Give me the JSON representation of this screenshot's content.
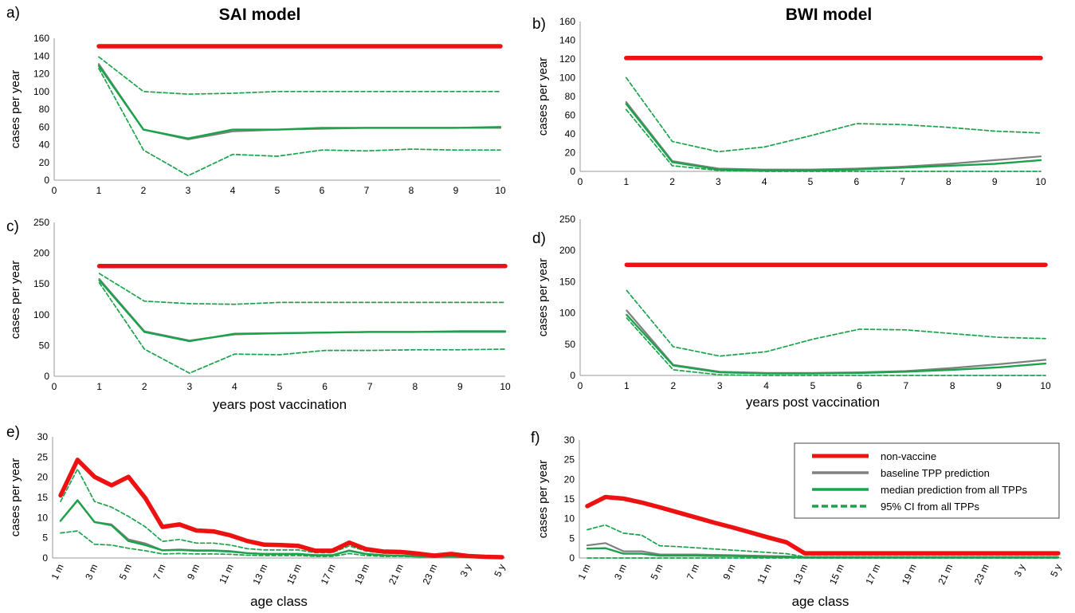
{
  "titles": {
    "left": "SAI model",
    "right": "BWI model"
  },
  "legend": {
    "items": [
      {
        "label": "non-vaccine",
        "color": "#ee1111",
        "dash": false,
        "style": "thick"
      },
      {
        "label": "baseline TPP prediction",
        "color": "#808080",
        "dash": false,
        "style": "mid"
      },
      {
        "label": "median prediction from all TPPs",
        "color": "#1aa34a",
        "dash": false,
        "style": "mid"
      },
      {
        "label": "95% CI from all TPPs",
        "color": "#1aa34a",
        "dash": true,
        "style": "mid"
      }
    ]
  },
  "colors": {
    "nonvaccine": "#ee1111",
    "baseline": "#808080",
    "median": "#1aa34a",
    "ci": "#1aa34a"
  },
  "chart_data": [
    {
      "panel": "a)",
      "type": "line",
      "title": "SAI model",
      "xlabel": "",
      "ylabel": "cases per year",
      "x": [
        1,
        2,
        3,
        4,
        5,
        6,
        7,
        8,
        9,
        10
      ],
      "xticks": [
        "0",
        "1",
        "2",
        "3",
        "4",
        "5",
        "6",
        "7",
        "8",
        "9",
        "10"
      ],
      "yticks": [
        "0",
        "20",
        "40",
        "60",
        "80",
        "100",
        "120",
        "140",
        "160"
      ],
      "xlim": [
        0,
        10
      ],
      "ylim": [
        0,
        160
      ],
      "series": [
        {
          "name": "non-vaccine",
          "role": "nonvaccine",
          "values": [
            151,
            151,
            151,
            151,
            151,
            151,
            151,
            151,
            151,
            151
          ]
        },
        {
          "name": "baseline TPP prediction",
          "role": "baseline",
          "values": [
            131,
            57,
            46,
            55,
            57,
            58,
            59,
            59,
            59,
            59
          ]
        },
        {
          "name": "median prediction from all TPPs",
          "role": "median",
          "values": [
            129,
            57,
            47,
            57,
            57,
            59,
            59,
            59,
            59,
            60
          ]
        },
        {
          "name": "95% CI from all TPPs",
          "role": "ci",
          "values": [
            139,
            100,
            97,
            98,
            100,
            100,
            100,
            100,
            100,
            100
          ]
        },
        {
          "name": "95% CI from all TPPs",
          "role": "ci",
          "values": [
            126,
            34,
            5,
            29,
            27,
            34,
            33,
            35,
            34,
            34
          ]
        }
      ]
    },
    {
      "panel": "b)",
      "type": "line",
      "title": "BWI model",
      "xlabel": "",
      "ylabel": "cases per year",
      "x": [
        1,
        2,
        3,
        4,
        5,
        6,
        7,
        8,
        9,
        10
      ],
      "xticks": [
        "0",
        "1",
        "2",
        "3",
        "4",
        "5",
        "6",
        "7",
        "8",
        "9",
        "10"
      ],
      "yticks": [
        "0",
        "20",
        "40",
        "60",
        "80",
        "100",
        "120",
        "140",
        "160"
      ],
      "xlim": [
        0,
        10
      ],
      "ylim": [
        0,
        160
      ],
      "series": [
        {
          "name": "non-vaccine",
          "role": "nonvaccine",
          "values": [
            121,
            121,
            121,
            121,
            121,
            121,
            121,
            121,
            121,
            121
          ]
        },
        {
          "name": "baseline TPP prediction",
          "role": "baseline",
          "values": [
            74,
            11,
            3,
            2,
            2,
            3,
            5,
            8,
            12,
            16
          ]
        },
        {
          "name": "median prediction from all TPPs",
          "role": "median",
          "values": [
            72,
            10,
            2,
            1,
            1,
            2,
            4,
            6,
            8,
            12
          ]
        },
        {
          "name": "95% CI from all TPPs",
          "role": "ci",
          "values": [
            100,
            32,
            21,
            26,
            38,
            51,
            50,
            47,
            43,
            41
          ]
        },
        {
          "name": "95% CI from all TPPs",
          "role": "ci",
          "values": [
            66,
            6,
            1,
            0,
            0,
            0,
            0,
            0,
            0,
            0
          ]
        }
      ]
    },
    {
      "panel": "c)",
      "type": "line",
      "xlabel": "years post vaccination",
      "ylabel": "cases per year",
      "x": [
        1,
        2,
        3,
        4,
        5,
        6,
        7,
        8,
        9,
        10
      ],
      "xticks": [
        "0",
        "1",
        "2",
        "3",
        "4",
        "5",
        "6",
        "7",
        "8",
        "9",
        "10"
      ],
      "yticks": [
        "0",
        "50",
        "100",
        "150",
        "200",
        "250"
      ],
      "xlim": [
        0,
        10
      ],
      "ylim": [
        0,
        250
      ],
      "series": [
        {
          "name": "non-vaccine",
          "role": "nonvaccine",
          "values": [
            179,
            179,
            179,
            179,
            179,
            179,
            179,
            179,
            179,
            179
          ]
        },
        {
          "name": "baseline TPP prediction",
          "role": "baseline",
          "values": [
            158,
            73,
            58,
            68,
            70,
            71,
            72,
            72,
            72,
            72
          ]
        },
        {
          "name": "median prediction from all TPPs",
          "role": "median",
          "values": [
            156,
            72,
            57,
            69,
            70,
            71,
            72,
            72,
            73,
            73
          ]
        },
        {
          "name": "95% CI from all TPPs",
          "role": "ci",
          "values": [
            167,
            122,
            118,
            117,
            120,
            120,
            120,
            120,
            120,
            120
          ]
        },
        {
          "name": "95% CI from all TPPs",
          "role": "ci",
          "values": [
            152,
            44,
            5,
            36,
            35,
            42,
            42,
            43,
            43,
            44
          ]
        }
      ]
    },
    {
      "panel": "d)",
      "type": "line",
      "xlabel": "years post vaccination",
      "ylabel": "cases per year",
      "x": [
        1,
        2,
        3,
        4,
        5,
        6,
        7,
        8,
        9,
        10
      ],
      "xticks": [
        "0",
        "1",
        "2",
        "3",
        "4",
        "5",
        "6",
        "7",
        "8",
        "9",
        "10"
      ],
      "yticks": [
        "0",
        "50",
        "100",
        "150",
        "200",
        "250"
      ],
      "xlim": [
        0,
        10
      ],
      "ylim": [
        0,
        250
      ],
      "series": [
        {
          "name": "non-vaccine",
          "role": "nonvaccine",
          "values": [
            177,
            177,
            177,
            177,
            177,
            177,
            177,
            177,
            177,
            177
          ]
        },
        {
          "name": "baseline TPP prediction",
          "role": "baseline",
          "values": [
            104,
            17,
            6,
            4,
            4,
            5,
            7,
            12,
            18,
            25
          ]
        },
        {
          "name": "median prediction from all TPPs",
          "role": "median",
          "values": [
            97,
            16,
            5,
            3,
            3,
            4,
            6,
            9,
            13,
            19
          ]
        },
        {
          "name": "95% CI from all TPPs",
          "role": "ci",
          "values": [
            136,
            46,
            31,
            38,
            58,
            74,
            73,
            67,
            61,
            59
          ]
        },
        {
          "name": "95% CI from all TPPs",
          "role": "ci",
          "values": [
            92,
            9,
            1,
            0,
            0,
            0,
            0,
            0,
            0,
            0
          ]
        }
      ]
    },
    {
      "panel": "e)",
      "type": "line",
      "xlabel": "age class",
      "ylabel": "cases per year",
      "categories": [
        "1 m",
        "2 m",
        "3 m",
        "4 m",
        "5 m",
        "6 m",
        "7 m",
        "8 m",
        "9 m",
        "10 m",
        "11 m",
        "12 m",
        "13 m",
        "14 m",
        "15 m",
        "16 m",
        "17 m",
        "18 m",
        "19 m",
        "20 m",
        "21 m",
        "22 m",
        "23 m",
        "2 y",
        "3 y",
        "4 y",
        "5 y"
      ],
      "xticks": [
        "1 m",
        "3 m",
        "5 m",
        "7 m",
        "9 m",
        "11 m",
        "13 m",
        "15 m",
        "17 m",
        "19 m",
        "21 m",
        "23 m",
        "3 y",
        "5 y"
      ],
      "yticks": [
        "0",
        "5",
        "10",
        "15",
        "20",
        "25",
        "30"
      ],
      "ylim": [
        0,
        30
      ],
      "series": [
        {
          "name": "non-vaccine",
          "role": "nonvaccine",
          "values": [
            15.5,
            24.3,
            20.1,
            18,
            20.1,
            14.8,
            7.7,
            8.3,
            6.8,
            6.6,
            5.6,
            4.2,
            3.3,
            3.2,
            3,
            1.8,
            1.8,
            3.8,
            2.2,
            1.6,
            1.5,
            1.1,
            0.6,
            1,
            0.5,
            0.3,
            0.2
          ]
        },
        {
          "name": "baseline TPP prediction",
          "role": "baseline",
          "values": [
            9.2,
            14.2,
            8.9,
            8.3,
            4.6,
            3.6,
            1.9,
            2.1,
            1.9,
            1.9,
            1.7,
            1.2,
            1,
            1,
            1,
            0.7,
            0.7,
            1.9,
            1,
            0.7,
            0.6,
            0.4,
            0.3,
            0.4,
            0.2,
            0.1,
            0.1
          ]
        },
        {
          "name": "median prediction from all TPPs",
          "role": "median",
          "values": [
            9.2,
            14.3,
            8.9,
            8.1,
            4.2,
            3.2,
            1.9,
            2,
            1.8,
            1.8,
            1.6,
            1.2,
            1,
            1,
            1,
            0.7,
            0.7,
            1.8,
            1,
            0.7,
            0.6,
            0.4,
            0.3,
            0.4,
            0.2,
            0.1,
            0.1
          ]
        },
        {
          "name": "95% CI from all TPPs",
          "role": "ci",
          "values": [
            14,
            22,
            14,
            12.6,
            10.3,
            7.7,
            4.1,
            4.6,
            3.7,
            3.7,
            3.2,
            2.3,
            2,
            2,
            2,
            1.3,
            1.3,
            3,
            1.7,
            1.2,
            1.1,
            0.8,
            0.5,
            0.7,
            0.3,
            0.2,
            0.1
          ]
        },
        {
          "name": "95% CI from all TPPs",
          "role": "ci",
          "values": [
            6.2,
            6.7,
            3.4,
            3.2,
            2.4,
            1.8,
            1,
            1.1,
            1,
            1,
            0.9,
            0.7,
            0.6,
            0.6,
            0.6,
            0.4,
            0.4,
            1.1,
            0.6,
            0.4,
            0.4,
            0.3,
            0.2,
            0.3,
            0.1,
            0.1,
            0
          ]
        }
      ]
    },
    {
      "panel": "f)",
      "type": "line",
      "xlabel": "age class",
      "ylabel": "cases per year",
      "categories": [
        "1 m",
        "2 m",
        "3 m",
        "4 m",
        "5 m",
        "6 m",
        "7 m",
        "8 m",
        "9 m",
        "10 m",
        "11 m",
        "12 m",
        "13 m",
        "14 m",
        "15 m",
        "16 m",
        "17 m",
        "18 m",
        "19 m",
        "20 m",
        "21 m",
        "22 m",
        "23 m",
        "2 y",
        "3 y",
        "4 y",
        "5 y"
      ],
      "xticks": [
        "1 m",
        "3 m",
        "5 m",
        "7 m",
        "9 m",
        "11 m",
        "13 m",
        "15 m",
        "17 m",
        "19 m",
        "21 m",
        "23 m",
        "3 y",
        "5 y"
      ],
      "yticks": [
        "0",
        "5",
        "10",
        "15",
        "20",
        "25",
        "30"
      ],
      "ylim": [
        0,
        30
      ],
      "series": [
        {
          "name": "non-vaccine",
          "role": "nonvaccine",
          "values": [
            13.2,
            15.5,
            15.1,
            14.1,
            12.9,
            11.6,
            10.3,
            9,
            7.8,
            6.5,
            5.2,
            4,
            1.2,
            1.2,
            1.2,
            1.2,
            1.2,
            1.2,
            1.2,
            1.2,
            1.2,
            1.2,
            1.2,
            1.2,
            1.2,
            1.2,
            1.2
          ]
        },
        {
          "name": "baseline TPP prediction",
          "role": "baseline",
          "values": [
            3.2,
            3.8,
            1.7,
            1.7,
            0.9,
            0.9,
            0.9,
            0.8,
            0.7,
            0.6,
            0.5,
            0.4,
            0.2,
            0.2,
            0.2,
            0.2,
            0.2,
            0.2,
            0.2,
            0.2,
            0.2,
            0.2,
            0.2,
            0.2,
            0.2,
            0.2,
            0.2
          ]
        },
        {
          "name": "median prediction from all TPPs",
          "role": "median",
          "values": [
            2.4,
            2.5,
            1.1,
            1.1,
            0.6,
            0.6,
            0.6,
            0.5,
            0.5,
            0.4,
            0.3,
            0.3,
            0.1,
            0.1,
            0.1,
            0.1,
            0.1,
            0.1,
            0.1,
            0.1,
            0.1,
            0.1,
            0.1,
            0.1,
            0.1,
            0.1,
            0.1
          ]
        },
        {
          "name": "95% CI from all TPPs",
          "role": "ci",
          "values": [
            7.2,
            8.4,
            6.3,
            5.8,
            3.1,
            2.9,
            2.6,
            2.3,
            2,
            1.7,
            1.4,
            1.1,
            0.3,
            0.3,
            0.3,
            0.3,
            0.3,
            0.3,
            0.3,
            0.3,
            0.3,
            0.3,
            0.3,
            0.3,
            0.3,
            0.3,
            0.3
          ]
        },
        {
          "name": "95% CI from all TPPs",
          "role": "ci",
          "values": [
            0,
            0,
            0,
            0,
            0,
            0,
            0,
            0,
            0,
            0,
            0,
            0,
            0,
            0,
            0,
            0,
            0,
            0,
            0,
            0,
            0,
            0,
            0,
            0,
            0,
            0,
            0
          ]
        }
      ]
    }
  ]
}
